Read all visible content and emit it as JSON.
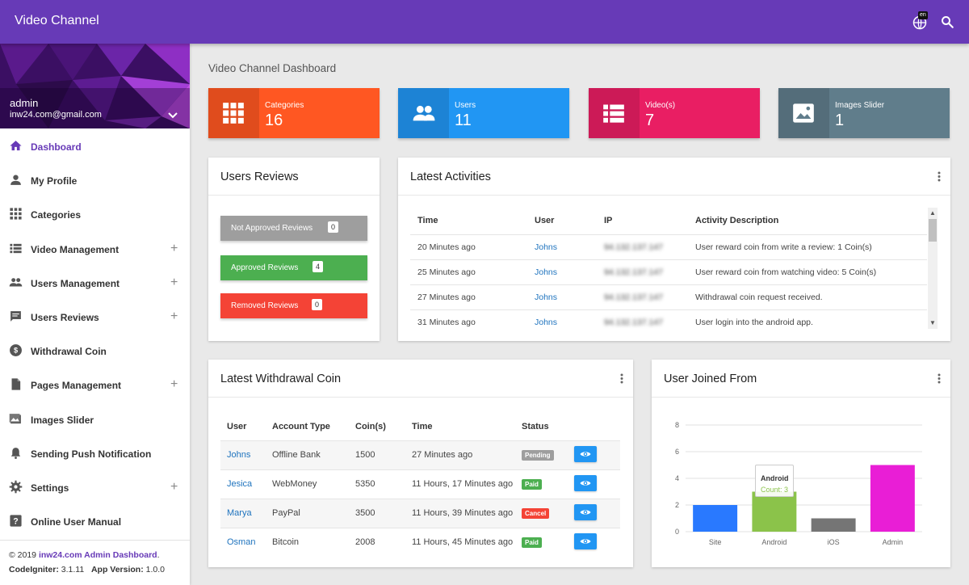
{
  "topbar": {
    "title": "Video Channel",
    "lang_badge": "en"
  },
  "sidebar": {
    "user_name": "admin",
    "user_email": "inw24.com@gmail.com",
    "items": [
      {
        "label": "Dashboard",
        "icon": "home-icon",
        "active": true,
        "expandable": false
      },
      {
        "label": "My Profile",
        "icon": "person-icon",
        "expandable": false
      },
      {
        "label": "Categories",
        "icon": "grid-icon",
        "expandable": false
      },
      {
        "label": "Video Management",
        "icon": "list-icon",
        "expandable": true
      },
      {
        "label": "Users Management",
        "icon": "people-icon",
        "expandable": true
      },
      {
        "label": "Users Reviews",
        "icon": "comment-icon",
        "expandable": true
      },
      {
        "label": "Withdrawal Coin",
        "icon": "dollar-icon",
        "expandable": false
      },
      {
        "label": "Pages Management",
        "icon": "page-icon",
        "expandable": true
      },
      {
        "label": "Images Slider",
        "icon": "image-icon",
        "expandable": false
      },
      {
        "label": "Sending Push Notification",
        "icon": "bell-icon",
        "expandable": false
      },
      {
        "label": "Settings",
        "icon": "gear-icon",
        "expandable": true
      },
      {
        "label": "Online User Manual",
        "icon": "help-icon",
        "expandable": false
      }
    ],
    "plus": "+",
    "footer": {
      "copyright": "© 2019 ",
      "brand": "inw24.com Admin Dashboard",
      "dot": ".",
      "ci_label": "CodeIgniter:",
      "ci_version": " 3.1.11",
      "app_label": "App Version:",
      "app_version": " 1.0.0"
    }
  },
  "page_title": "Video Channel Dashboard",
  "stats": [
    {
      "title": "Categories",
      "value": "16",
      "color": "#ff5722",
      "icon": "grid-icon"
    },
    {
      "title": "Users",
      "value": "11",
      "color": "#2196f3",
      "icon": "people-icon"
    },
    {
      "title": "Video(s)",
      "value": "7",
      "color": "#e91e63",
      "icon": "list-icon"
    },
    {
      "title": "Images Slider",
      "value": "1",
      "color": "#607d8b",
      "icon": "image-icon"
    }
  ],
  "reviews": {
    "title": "Users Reviews",
    "buttons": [
      {
        "label": "Not Approved Reviews",
        "count": "0",
        "color": "#9e9e9e"
      },
      {
        "label": "Approved Reviews",
        "count": "4",
        "color": "#4caf50"
      },
      {
        "label": "Removed Reviews",
        "count": "0",
        "color": "#f44336"
      }
    ]
  },
  "activities": {
    "title": "Latest Activities",
    "headers": [
      "Time",
      "User",
      "IP",
      "Activity Description"
    ],
    "rows": [
      {
        "time": "20 Minutes ago",
        "user": "Johns",
        "ip": "94.132.137.147",
        "desc": "User reward coin from write a review: 1 Coin(s)"
      },
      {
        "time": "25 Minutes ago",
        "user": "Johns",
        "ip": "94.132.137.147",
        "desc": "User reward coin from watching video: 5 Coin(s)"
      },
      {
        "time": "27 Minutes ago",
        "user": "Johns",
        "ip": "94.132.137.147",
        "desc": "Withdrawal coin request received."
      },
      {
        "time": "31 Minutes ago",
        "user": "Johns",
        "ip": "94.132.137.147",
        "desc": "User login into the android app."
      }
    ]
  },
  "withdrawal": {
    "title": "Latest Withdrawal Coin",
    "headers": [
      "User",
      "Account Type",
      "Coin(s)",
      "Time",
      "Status"
    ],
    "rows": [
      {
        "user": "Johns",
        "account": "Offline Bank",
        "coins": "1500",
        "time": "27 Minutes ago",
        "status": "Pending",
        "status_color": "#9e9e9e"
      },
      {
        "user": "Jesica",
        "account": "WebMoney",
        "coins": "5350",
        "time": "11 Hours, 17 Minutes ago",
        "status": "Paid",
        "status_color": "#4caf50"
      },
      {
        "user": "Marya",
        "account": "PayPal",
        "coins": "3500",
        "time": "11 Hours, 39 Minutes ago",
        "status": "Cancel",
        "status_color": "#f44336"
      },
      {
        "user": "Osman",
        "account": "Bitcoin",
        "coins": "2008",
        "time": "11 Hours, 45 Minutes ago",
        "status": "Paid",
        "status_color": "#4caf50"
      }
    ]
  },
  "joined": {
    "title": "User Joined From",
    "tooltip_title": "Android",
    "tooltip_value": "Count: 3"
  },
  "chart_data": {
    "type": "bar",
    "categories": [
      "Site",
      "Android",
      "iOS",
      "Admin"
    ],
    "values": [
      2,
      3,
      1,
      5
    ],
    "colors": [
      "#2979ff",
      "#8bc34a",
      "#757575",
      "#e91ed6"
    ],
    "yticks": [
      "0",
      "2",
      "4",
      "6",
      "8"
    ],
    "ylim": [
      0,
      8
    ],
    "grid": true,
    "legend": "none"
  }
}
